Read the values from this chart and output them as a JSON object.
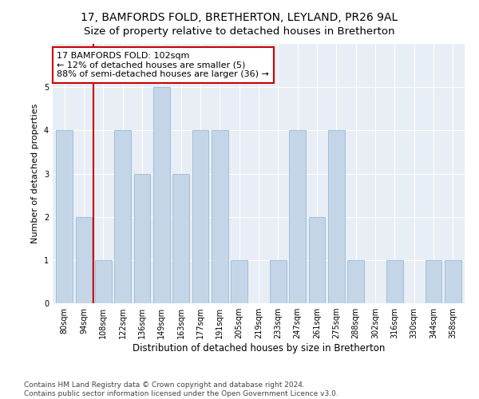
{
  "title": "17, BAMFORDS FOLD, BRETHERTON, LEYLAND, PR26 9AL",
  "subtitle": "Size of property relative to detached houses in Bretherton",
  "xlabel": "Distribution of detached houses by size in Bretherton",
  "ylabel": "Number of detached properties",
  "categories": [
    "80sqm",
    "94sqm",
    "108sqm",
    "122sqm",
    "136sqm",
    "149sqm",
    "163sqm",
    "177sqm",
    "191sqm",
    "205sqm",
    "219sqm",
    "233sqm",
    "247sqm",
    "261sqm",
    "275sqm",
    "288sqm",
    "302sqm",
    "316sqm",
    "330sqm",
    "344sqm",
    "358sqm"
  ],
  "values": [
    4,
    2,
    1,
    4,
    3,
    5,
    3,
    4,
    4,
    1,
    0,
    1,
    4,
    2,
    4,
    1,
    0,
    1,
    0,
    1,
    1
  ],
  "bar_color": "#c5d5e8",
  "bar_edge_color": "#8aafd4",
  "bar_edge_width": 0.5,
  "vline_x_index": 1.5,
  "vline_color": "#cc0000",
  "annotation_line1": "17 BAMFORDS FOLD: 102sqm",
  "annotation_line2": "← 12% of detached houses are smaller (5)",
  "annotation_line3": "88% of semi-detached houses are larger (36) →",
  "annotation_box_facecolor": "#ffffff",
  "annotation_box_edgecolor": "#cc0000",
  "ylim": [
    0,
    6
  ],
  "yticks": [
    0,
    1,
    2,
    3,
    4,
    5,
    6
  ],
  "footer_line1": "Contains HM Land Registry data © Crown copyright and database right 2024.",
  "footer_line2": "Contains public sector information licensed under the Open Government Licence v3.0.",
  "bg_color": "#e8eef5",
  "title_fontsize": 10,
  "tick_fontsize": 7,
  "annotation_fontsize": 8,
  "footer_fontsize": 6.5,
  "xlabel_fontsize": 8.5,
  "ylabel_fontsize": 8
}
